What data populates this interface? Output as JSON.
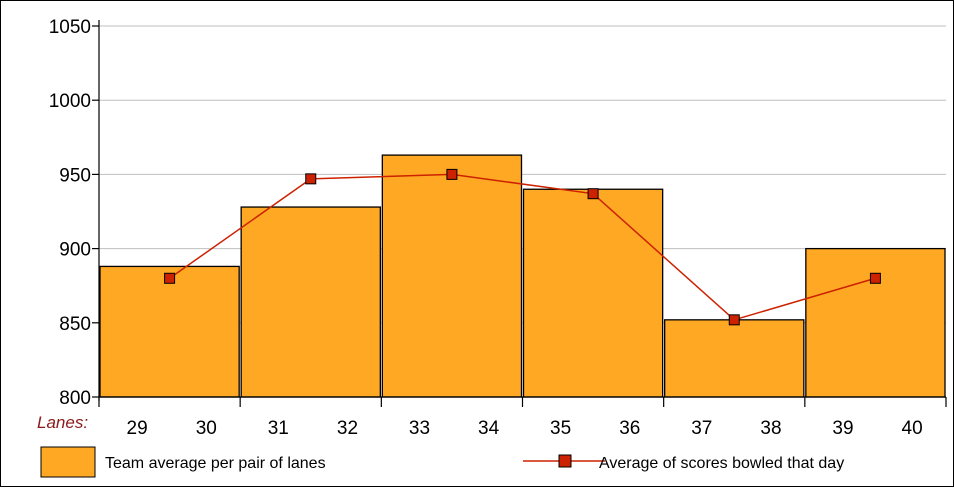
{
  "chart_data": {
    "type": "bar",
    "title": "",
    "xlabel": "Lanes:",
    "ylabel": "",
    "ylim": [
      800,
      1050
    ],
    "yticks": [
      800,
      850,
      900,
      950,
      1000,
      1050
    ],
    "grid": true,
    "lane_labels": [
      "29",
      "30",
      "31",
      "32",
      "33",
      "34",
      "35",
      "36",
      "37",
      "38",
      "39",
      "40"
    ],
    "categories": [
      "29-30",
      "31-32",
      "33-34",
      "35-36",
      "37-38",
      "39-40"
    ],
    "series": [
      {
        "name": "Team average per pair of lanes",
        "kind": "bar",
        "color": "#FFA824",
        "values": [
          888,
          928,
          963,
          940,
          852,
          900
        ]
      },
      {
        "name": "Average of scores bowled that day",
        "kind": "line",
        "color": "#CC2200",
        "values": [
          880,
          947,
          950,
          937,
          852,
          880
        ]
      }
    ],
    "legend": {
      "position": "bottom",
      "items": [
        "Team average per pair of lanes",
        "Average of scores bowled that day"
      ]
    }
  }
}
